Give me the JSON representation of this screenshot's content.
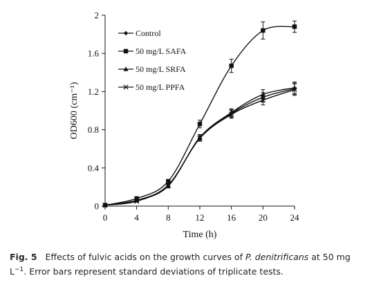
{
  "caption": {
    "label": "Fig. 5",
    "text_before": "Effects of fulvic acids on the growth curves of ",
    "organism": "P. denitrificans",
    "text_mid": " at 50 mg L",
    "exponent": "−1",
    "text_after": ". Error bars represent standard deviations of triplicate tests."
  },
  "chart_data": {
    "type": "line",
    "title": "",
    "xlabel": "Time (h)",
    "ylabel": "OD600 (cm⁻¹)",
    "xlim": [
      0,
      24
    ],
    "ylim": [
      0,
      2
    ],
    "xticks": [
      0,
      4,
      8,
      12,
      16,
      20,
      24
    ],
    "yticks": [
      0,
      0.4,
      0.8,
      1.2,
      1.6,
      2
    ],
    "ytick_labels": [
      "0",
      "0.4",
      "0.8",
      "1.2",
      "1.6",
      "2"
    ],
    "grid": false,
    "legend_position": "top-left",
    "x": [
      0,
      4,
      8,
      12,
      16,
      20,
      24
    ],
    "series": [
      {
        "name": "Control",
        "marker": "diamond",
        "values": [
          0.01,
          0.06,
          0.22,
          0.71,
          0.97,
          1.14,
          1.23
        ],
        "errors": [
          0.005,
          0.01,
          0.02,
          0.03,
          0.04,
          0.05,
          0.06
        ]
      },
      {
        "name": "50 mg/L SAFA",
        "marker": "square",
        "values": [
          0.01,
          0.08,
          0.26,
          0.86,
          1.47,
          1.84,
          1.88
        ],
        "errors": [
          0.005,
          0.01,
          0.02,
          0.04,
          0.07,
          0.09,
          0.06
        ]
      },
      {
        "name": "50 mg/L SRFA",
        "marker": "triangle",
        "values": [
          0.01,
          0.06,
          0.21,
          0.72,
          0.98,
          1.17,
          1.24
        ],
        "errors": [
          0.005,
          0.01,
          0.02,
          0.03,
          0.04,
          0.05,
          0.06
        ]
      },
      {
        "name": "50 mg/L PPFA",
        "marker": "x",
        "values": [
          0.01,
          0.05,
          0.22,
          0.71,
          0.96,
          1.11,
          1.22
        ],
        "errors": [
          0.005,
          0.01,
          0.02,
          0.03,
          0.04,
          0.05,
          0.06
        ]
      }
    ],
    "colors": {
      "line": "#111111",
      "axis": "#111111"
    }
  }
}
